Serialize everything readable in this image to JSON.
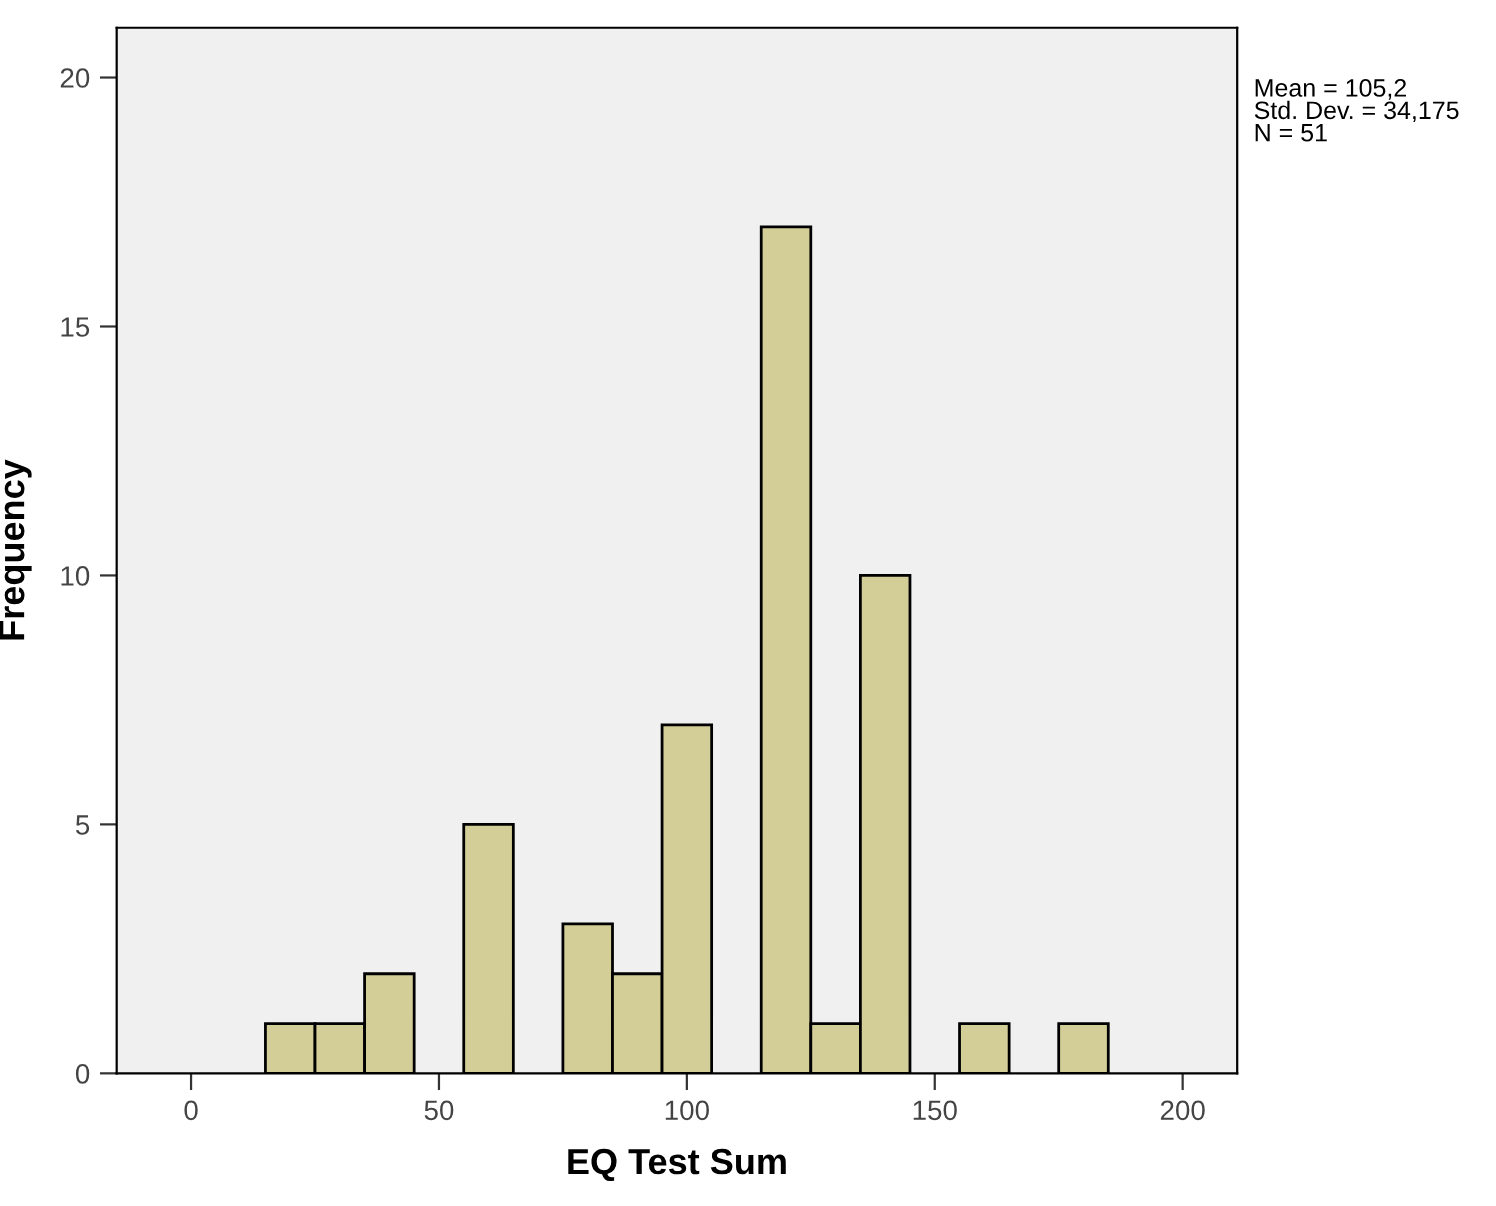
{
  "chart_data": {
    "type": "histogram",
    "bins": [
      15,
      25,
      35,
      45,
      55,
      65,
      75,
      85,
      95,
      105,
      115,
      125,
      135,
      145,
      155,
      165,
      175,
      185
    ],
    "values": [
      1,
      1,
      2,
      0,
      5,
      0,
      3,
      2,
      7,
      0,
      17,
      1,
      10,
      0,
      1,
      0,
      1
    ],
    "color": "#d3ce97",
    "xlabel": "EQ Test Sum",
    "ylabel": "Frequency",
    "xlim": [
      -15,
      211
    ],
    "ylim": [
      0,
      21
    ],
    "xticks": [
      0,
      50,
      100,
      150,
      200
    ],
    "yticks": [
      0,
      5,
      10,
      15,
      20
    ],
    "grid": false,
    "annotations": [
      "Mean = 105,2\nStd. Dev. = 34,175\nN = 51"
    ]
  }
}
